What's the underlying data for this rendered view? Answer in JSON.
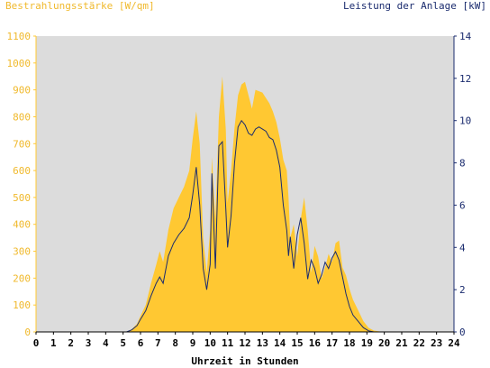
{
  "chart_data": {
    "type": "area",
    "left_axis_label": "Bestrahlungsstärke [W/qm]",
    "right_axis_label": "Leistung der Anlage [kW]",
    "xlabel": "Uhrzeit in Stunden",
    "xlim": [
      0,
      24
    ],
    "ylim_left": [
      0,
      1100
    ],
    "ylim_right": [
      0,
      14
    ],
    "x_ticks": [
      "0",
      "1",
      "2",
      "3",
      "4",
      "5",
      "6",
      "7",
      "8",
      "9",
      "10",
      "11",
      "12",
      "13",
      "14",
      "15",
      "16",
      "17",
      "18",
      "19",
      "20",
      "21",
      "22",
      "23",
      "24"
    ],
    "y_ticks_left": [
      "0",
      "100",
      "200",
      "300",
      "400",
      "500",
      "600",
      "700",
      "800",
      "900",
      "1000",
      "1100"
    ],
    "y_ticks_right": [
      "0",
      "2",
      "4",
      "6",
      "8",
      "10",
      "12",
      "14"
    ],
    "grid": false,
    "colors": {
      "irradiance": "#ffc832",
      "power": "#1a2b6e",
      "plot_bg": "#dcdcdc"
    },
    "series": [
      {
        "name": "Bestrahlungsstärke [W/qm]",
        "axis": "left",
        "x": [
          0,
          5.2,
          5.5,
          5.8,
          6.0,
          6.3,
          6.6,
          6.9,
          7.1,
          7.3,
          7.6,
          7.9,
          8.2,
          8.5,
          8.8,
          9.0,
          9.2,
          9.4,
          9.6,
          9.8,
          10.0,
          10.1,
          10.3,
          10.5,
          10.7,
          10.9,
          11.0,
          11.2,
          11.4,
          11.6,
          11.8,
          12.0,
          12.2,
          12.4,
          12.6,
          12.8,
          13.0,
          13.2,
          13.4,
          13.6,
          13.8,
          14.0,
          14.2,
          14.4,
          14.5,
          14.6,
          14.8,
          15.0,
          15.2,
          15.4,
          15.6,
          15.8,
          16.0,
          16.2,
          16.4,
          16.6,
          16.8,
          17.0,
          17.2,
          17.4,
          17.6,
          17.8,
          18.0,
          18.2,
          18.5,
          18.8,
          19.1,
          19.4,
          19.7,
          20.0,
          20.2,
          24
        ],
        "values": [
          0,
          0,
          10,
          30,
          60,
          100,
          180,
          250,
          300,
          260,
          380,
          460,
          500,
          540,
          600,
          720,
          820,
          700,
          350,
          220,
          380,
          650,
          420,
          800,
          950,
          750,
          480,
          600,
          760,
          880,
          920,
          930,
          880,
          830,
          900,
          895,
          890,
          870,
          850,
          820,
          780,
          720,
          640,
          600,
          500,
          350,
          400,
          280,
          420,
          500,
          380,
          220,
          320,
          280,
          200,
          240,
          290,
          260,
          330,
          340,
          240,
          210,
          160,
          120,
          80,
          40,
          15,
          5,
          2,
          0,
          0,
          0
        ]
      },
      {
        "name": "Leistung der Anlage [kW]",
        "axis": "right",
        "x": [
          0,
          5.2,
          5.5,
          5.8,
          6.0,
          6.3,
          6.6,
          6.9,
          7.1,
          7.3,
          7.6,
          7.9,
          8.2,
          8.5,
          8.8,
          9.0,
          9.2,
          9.4,
          9.6,
          9.8,
          10.0,
          10.1,
          10.3,
          10.5,
          10.7,
          10.9,
          11.0,
          11.2,
          11.4,
          11.6,
          11.8,
          12.0,
          12.2,
          12.4,
          12.6,
          12.8,
          13.0,
          13.2,
          13.4,
          13.6,
          13.8,
          14.0,
          14.2,
          14.4,
          14.5,
          14.6,
          14.8,
          15.0,
          15.2,
          15.4,
          15.6,
          15.8,
          16.0,
          16.2,
          16.4,
          16.6,
          16.8,
          17.0,
          17.2,
          17.4,
          17.6,
          17.8,
          18.0,
          18.2,
          18.5,
          18.8,
          19.1,
          19.4,
          19.7,
          20.0,
          20.2,
          24
        ],
        "values": [
          0,
          0,
          0.1,
          0.3,
          0.6,
          1.0,
          1.7,
          2.3,
          2.6,
          2.3,
          3.6,
          4.2,
          4.6,
          4.9,
          5.4,
          6.5,
          7.8,
          6.0,
          3.0,
          2.0,
          3.2,
          7.5,
          3.0,
          8.8,
          9.0,
          5.8,
          4.0,
          5.5,
          8.0,
          9.7,
          10.0,
          9.8,
          9.4,
          9.3,
          9.6,
          9.7,
          9.6,
          9.5,
          9.2,
          9.1,
          8.6,
          7.8,
          6.0,
          4.8,
          3.6,
          4.5,
          3.0,
          4.6,
          5.4,
          4.2,
          2.5,
          3.4,
          3.0,
          2.3,
          2.7,
          3.3,
          3.0,
          3.5,
          3.8,
          3.4,
          2.6,
          1.8,
          1.2,
          0.8,
          0.5,
          0.2,
          0.05,
          0,
          0,
          0,
          0,
          0
        ]
      }
    ]
  }
}
